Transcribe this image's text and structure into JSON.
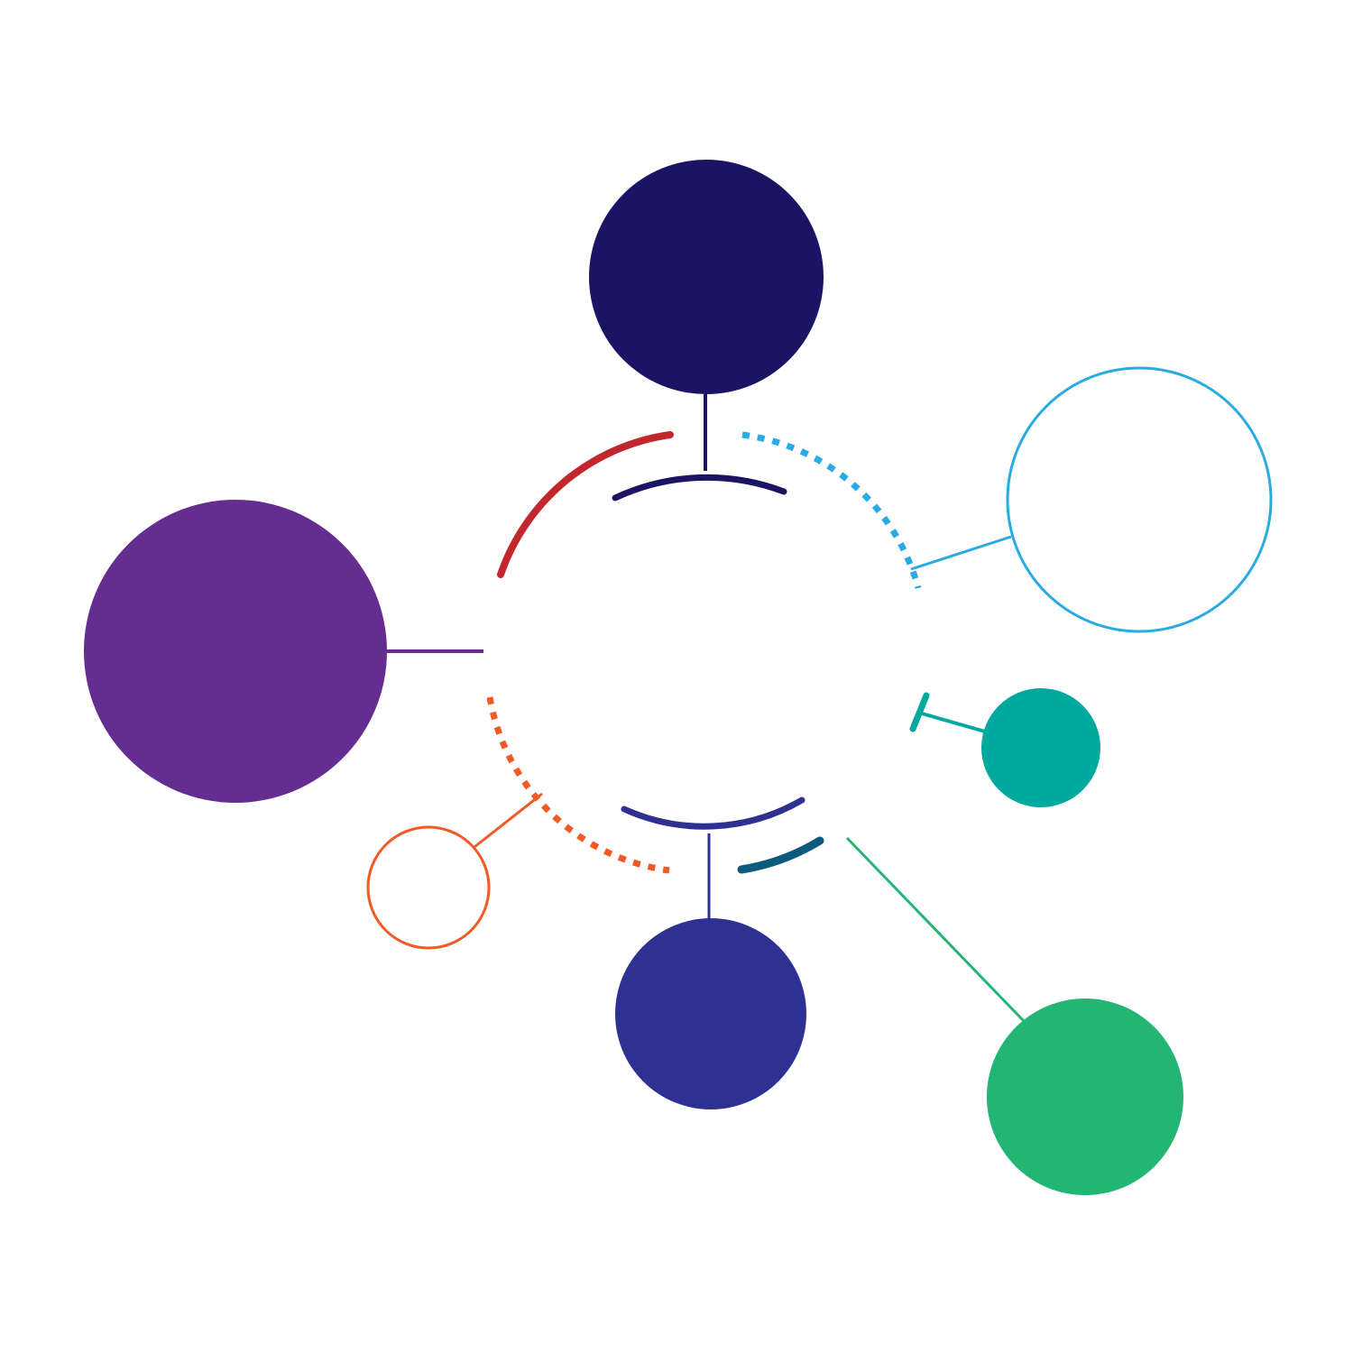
{
  "diagram": {
    "type": "radial-network",
    "background": "#ffffff",
    "labels": [],
    "hub": {
      "segments": [
        {
          "name": "top-left-arc",
          "color": "#C1272D",
          "style": "solid"
        },
        {
          "name": "top-inner-arc",
          "color": "#1B1464",
          "style": "solid"
        },
        {
          "name": "top-right-arc",
          "color": "#29ABE2",
          "style": "dotted"
        },
        {
          "name": "right-tick",
          "color": "#00A99D",
          "style": "solid"
        },
        {
          "name": "bottom-left-arc",
          "color": "#F15A24",
          "style": "dotted"
        },
        {
          "name": "bottom-inner-arc",
          "color": "#2E3192",
          "style": "solid"
        },
        {
          "name": "bottom-right-arc",
          "color": "#0C5B7F",
          "style": "solid"
        }
      ]
    },
    "nodes": [
      {
        "name": "top-node",
        "color": "#1B1464",
        "fill": "solid"
      },
      {
        "name": "upper-right-node",
        "color": "#29ABE2",
        "fill": "outline"
      },
      {
        "name": "right-node",
        "color": "#00A99D",
        "fill": "solid"
      },
      {
        "name": "left-node",
        "color": "#662D91",
        "fill": "solid"
      },
      {
        "name": "lower-left-node",
        "color": "#F15A24",
        "fill": "outline"
      },
      {
        "name": "bottom-node",
        "color": "#2E3192",
        "fill": "solid"
      },
      {
        "name": "bottom-right-node",
        "color": "#22B573",
        "fill": "solid"
      }
    ]
  }
}
